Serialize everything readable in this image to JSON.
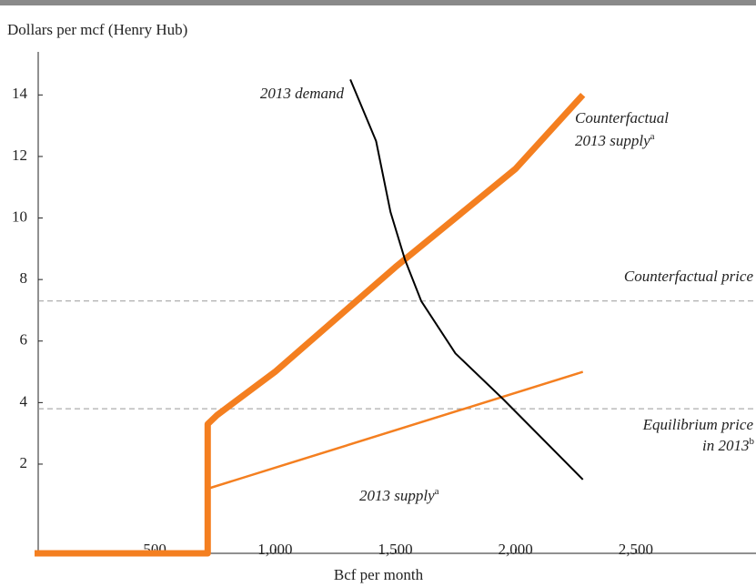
{
  "chart_data": {
    "type": "line",
    "y_label": "Dollars per mcf (Henry Hub)",
    "x_label": "Bcf per month",
    "xlim": [
      0,
      3000
    ],
    "xticks": [
      {
        "value": 500,
        "label": "500"
      },
      {
        "value": 1000,
        "label": "1,000"
      },
      {
        "value": 1500,
        "label": "1,500"
      },
      {
        "value": 2000,
        "label": "2,000"
      },
      {
        "value": 2500,
        "label": "2,500"
      }
    ],
    "ylim": [
      -0.9,
      15.4
    ],
    "yticks": [
      2,
      4,
      6,
      8,
      10,
      12,
      14
    ],
    "series": [
      {
        "color": "#f47f20",
        "x": [
          0,
          720,
          720,
          760,
          1000,
          1500,
          2000,
          2280
        ],
        "values": [
          -0.9,
          -0.9,
          3.3,
          3.6,
          5.0,
          8.4,
          11.6,
          14.0
        ]
      },
      {
        "color": "#f47f20",
        "x": [
          720,
          2280
        ],
        "values": [
          1.2,
          5.0
        ]
      },
      {
        "color": "#000000",
        "x": [
          1313,
          1420,
          1480,
          1540,
          1608,
          1750,
          1950,
          2280
        ],
        "values": [
          14.5,
          12.5,
          10.2,
          8.65,
          7.3,
          5.6,
          4.1,
          1.5
        ]
      }
    ],
    "reference_lines": [
      {
        "value": 7.3,
        "label": "Counterfactual price"
      },
      {
        "value": 3.8,
        "label": "Equilibrium price",
        "label2": "in 2013",
        "sup": "b"
      }
    ],
    "annotations": [
      {
        "text": "2013 demand"
      },
      {
        "text": "Counterfactual",
        "text2": "2013 supply",
        "sup": "a"
      },
      {
        "text": "2013 supply",
        "sup": "a"
      }
    ]
  }
}
